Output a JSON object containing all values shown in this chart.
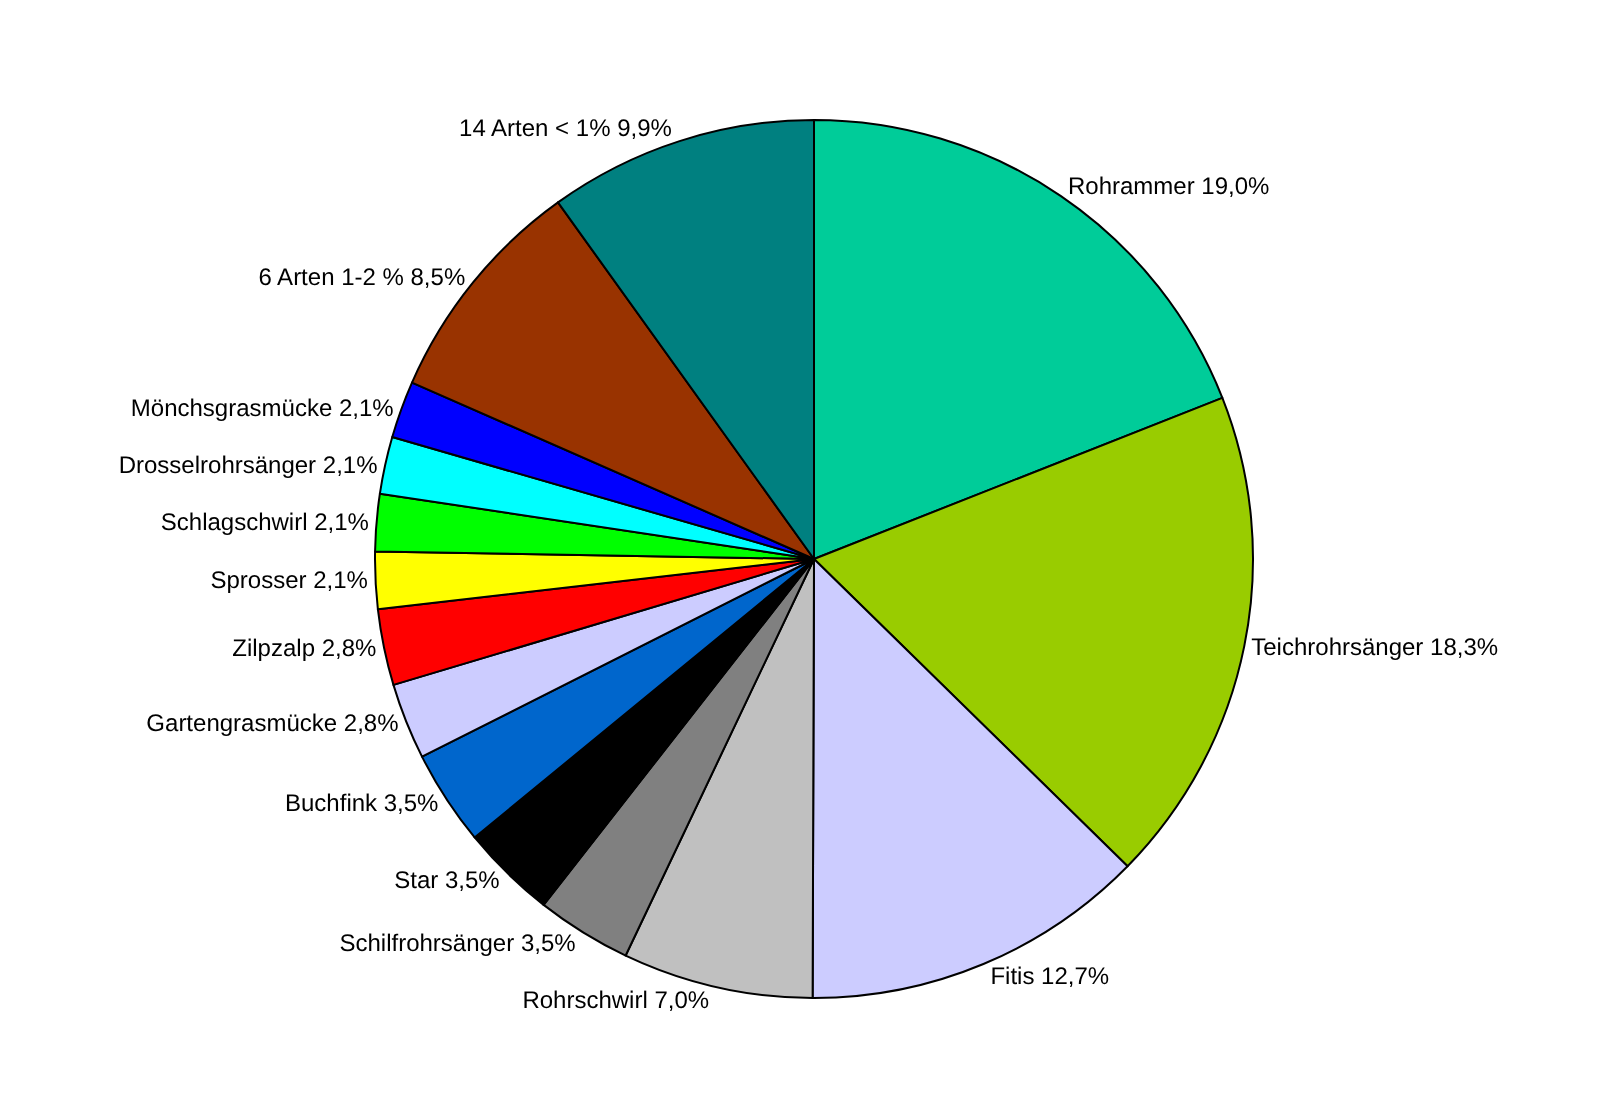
{
  "chart_data": {
    "type": "pie",
    "categories": [
      "Rohrammer",
      "Teichrohrsänger",
      "Fitis",
      "Rohrschwirl",
      "Schilfrohrsänger",
      "Star",
      "Buchfink",
      "Gartengrasmücke",
      "Zilpzalp",
      "Sprosser",
      "Schlagschwirl",
      "Drosselrohrsänger",
      "Mönchsgrasmücke",
      "6 Arten 1-2 %",
      "14 Arten < 1%"
    ],
    "values": [
      19.0,
      18.3,
      12.7,
      7.0,
      3.5,
      3.5,
      3.5,
      2.8,
      2.8,
      2.1,
      2.1,
      2.1,
      2.1,
      8.5,
      9.9
    ],
    "value_labels": [
      "19,0%",
      "18,3%",
      "12,7%",
      "7,0%",
      "3,5%",
      "3,5%",
      "3,5%",
      "2,8%",
      "2,8%",
      "2,1%",
      "2,1%",
      "2,1%",
      "2,1%",
      "8,5%",
      "9,9%"
    ],
    "colors": [
      "#00cc99",
      "#99cc00",
      "#ccccff",
      "#c0c0c0",
      "#808080",
      "#000000",
      "#0066cc",
      "#ccccff",
      "#ff0000",
      "#ffff00",
      "#00ff00",
      "#00ffff",
      "#0000ff",
      "#993300",
      "#008080"
    ],
    "legend": false
  }
}
